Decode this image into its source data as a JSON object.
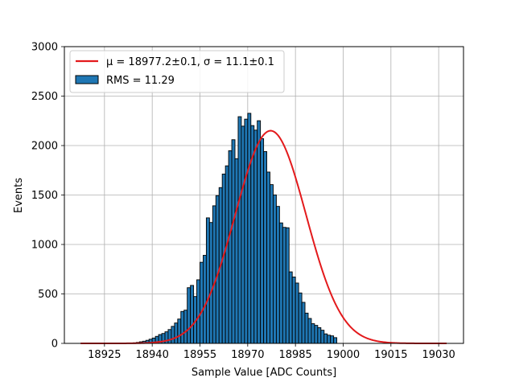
{
  "chart_data": {
    "type": "bar",
    "title": "",
    "xlabel": "Sample Value [ADC Counts]",
    "ylabel": "Events",
    "xlim": [
      18912.4,
      19037.8
    ],
    "ylim": [
      0,
      3000
    ],
    "xticks": [
      18925,
      18940,
      18955,
      18970,
      18985,
      19000,
      19015,
      19030
    ],
    "yticks": [
      0,
      500,
      1000,
      1500,
      2000,
      2500,
      3000
    ],
    "grid": true,
    "legend_position": "top-left",
    "bin_start": 18932,
    "bin_width": 1,
    "histogram": {
      "name": "RMS = 11.29",
      "color": "#1f77b4",
      "edgecolor": "#000000",
      "counts": [
        2,
        4,
        6,
        10,
        16,
        22,
        31,
        42,
        54,
        71,
        89,
        100,
        117,
        140,
        172,
        206,
        246,
        323,
        336,
        563,
        586,
        474,
        643,
        820,
        890,
        1269,
        1222,
        1391,
        1494,
        1575,
        1712,
        1795,
        1948,
        2059,
        1867,
        2292,
        2196,
        2267,
        2326,
        2202,
        2156,
        2251,
        2070,
        1939,
        1732,
        1605,
        1501,
        1385,
        1218,
        1173,
        1169,
        723,
        671,
        610,
        510,
        415,
        306,
        252,
        199,
        182,
        159,
        133,
        96,
        83,
        76,
        58
      ]
    },
    "fit": {
      "name": "$\\mu = 18977.2\\pm0.1$, $\\sigma = 11.1\\pm0.1$",
      "color": "#e31a1c",
      "mu": 18977.2,
      "sigma": 11.1,
      "amplitude": 2150,
      "x_range": [
        18917.5,
        19032.5
      ]
    }
  },
  "legend": {
    "fit_label": "μ = 18977.2±0.1, σ = 11.1±0.1",
    "hist_label": "RMS = 11.29"
  }
}
